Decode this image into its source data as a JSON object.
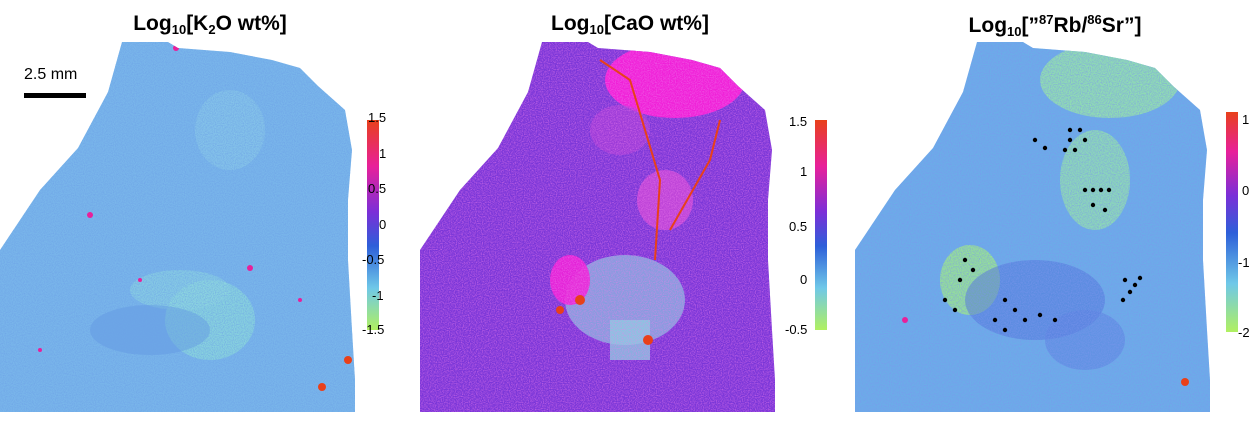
{
  "panels": [
    {
      "title": {
        "prefix": "Log",
        "sub": "10",
        "mid": "[K",
        "sub2": "2",
        "suffix": "O wt%]"
      },
      "colorbar": {
        "ticks": [
          "1.5",
          "1",
          "0.5",
          "0",
          "-0.5",
          "-1",
          "-1.5"
        ],
        "colors": [
          "#e8401a",
          "#e8209a",
          "#7a2fd8",
          "#2d5fd9",
          "#6fc8e8",
          "#b0f060"
        ]
      }
    },
    {
      "title": {
        "prefix": "Log",
        "sub": "10",
        "mid": "[CaO wt%]"
      },
      "colorbar": {
        "ticks": [
          "1.5",
          "1",
          "0.5",
          "0",
          "-0.5"
        ],
        "colors": [
          "#e8401a",
          "#e8209a",
          "#7a2fd8",
          "#2d5fd9",
          "#6fc8e8",
          "#b0f060"
        ]
      }
    },
    {
      "title": {
        "prefix": "Log",
        "sub": "10",
        "mid": "[”",
        "sup": "87",
        "mid2": "Rb/",
        "sup2": "86",
        "suffix": "Sr”]"
      },
      "colorbar": {
        "ticks": [
          "1",
          "0",
          "-1",
          "-2"
        ],
        "colors": [
          "#e8401a",
          "#e8209a",
          "#7a2fd8",
          "#2d5fd9",
          "#6fc8e8",
          "#b0f060"
        ]
      }
    }
  ],
  "scale_bar": {
    "label": "2.5 mm"
  },
  "colors": {
    "k2o_base": "#6fb0e8",
    "cao_base": "#8a3ad8",
    "rbsr_base": "#5aa0e0",
    "black": "#000000"
  }
}
